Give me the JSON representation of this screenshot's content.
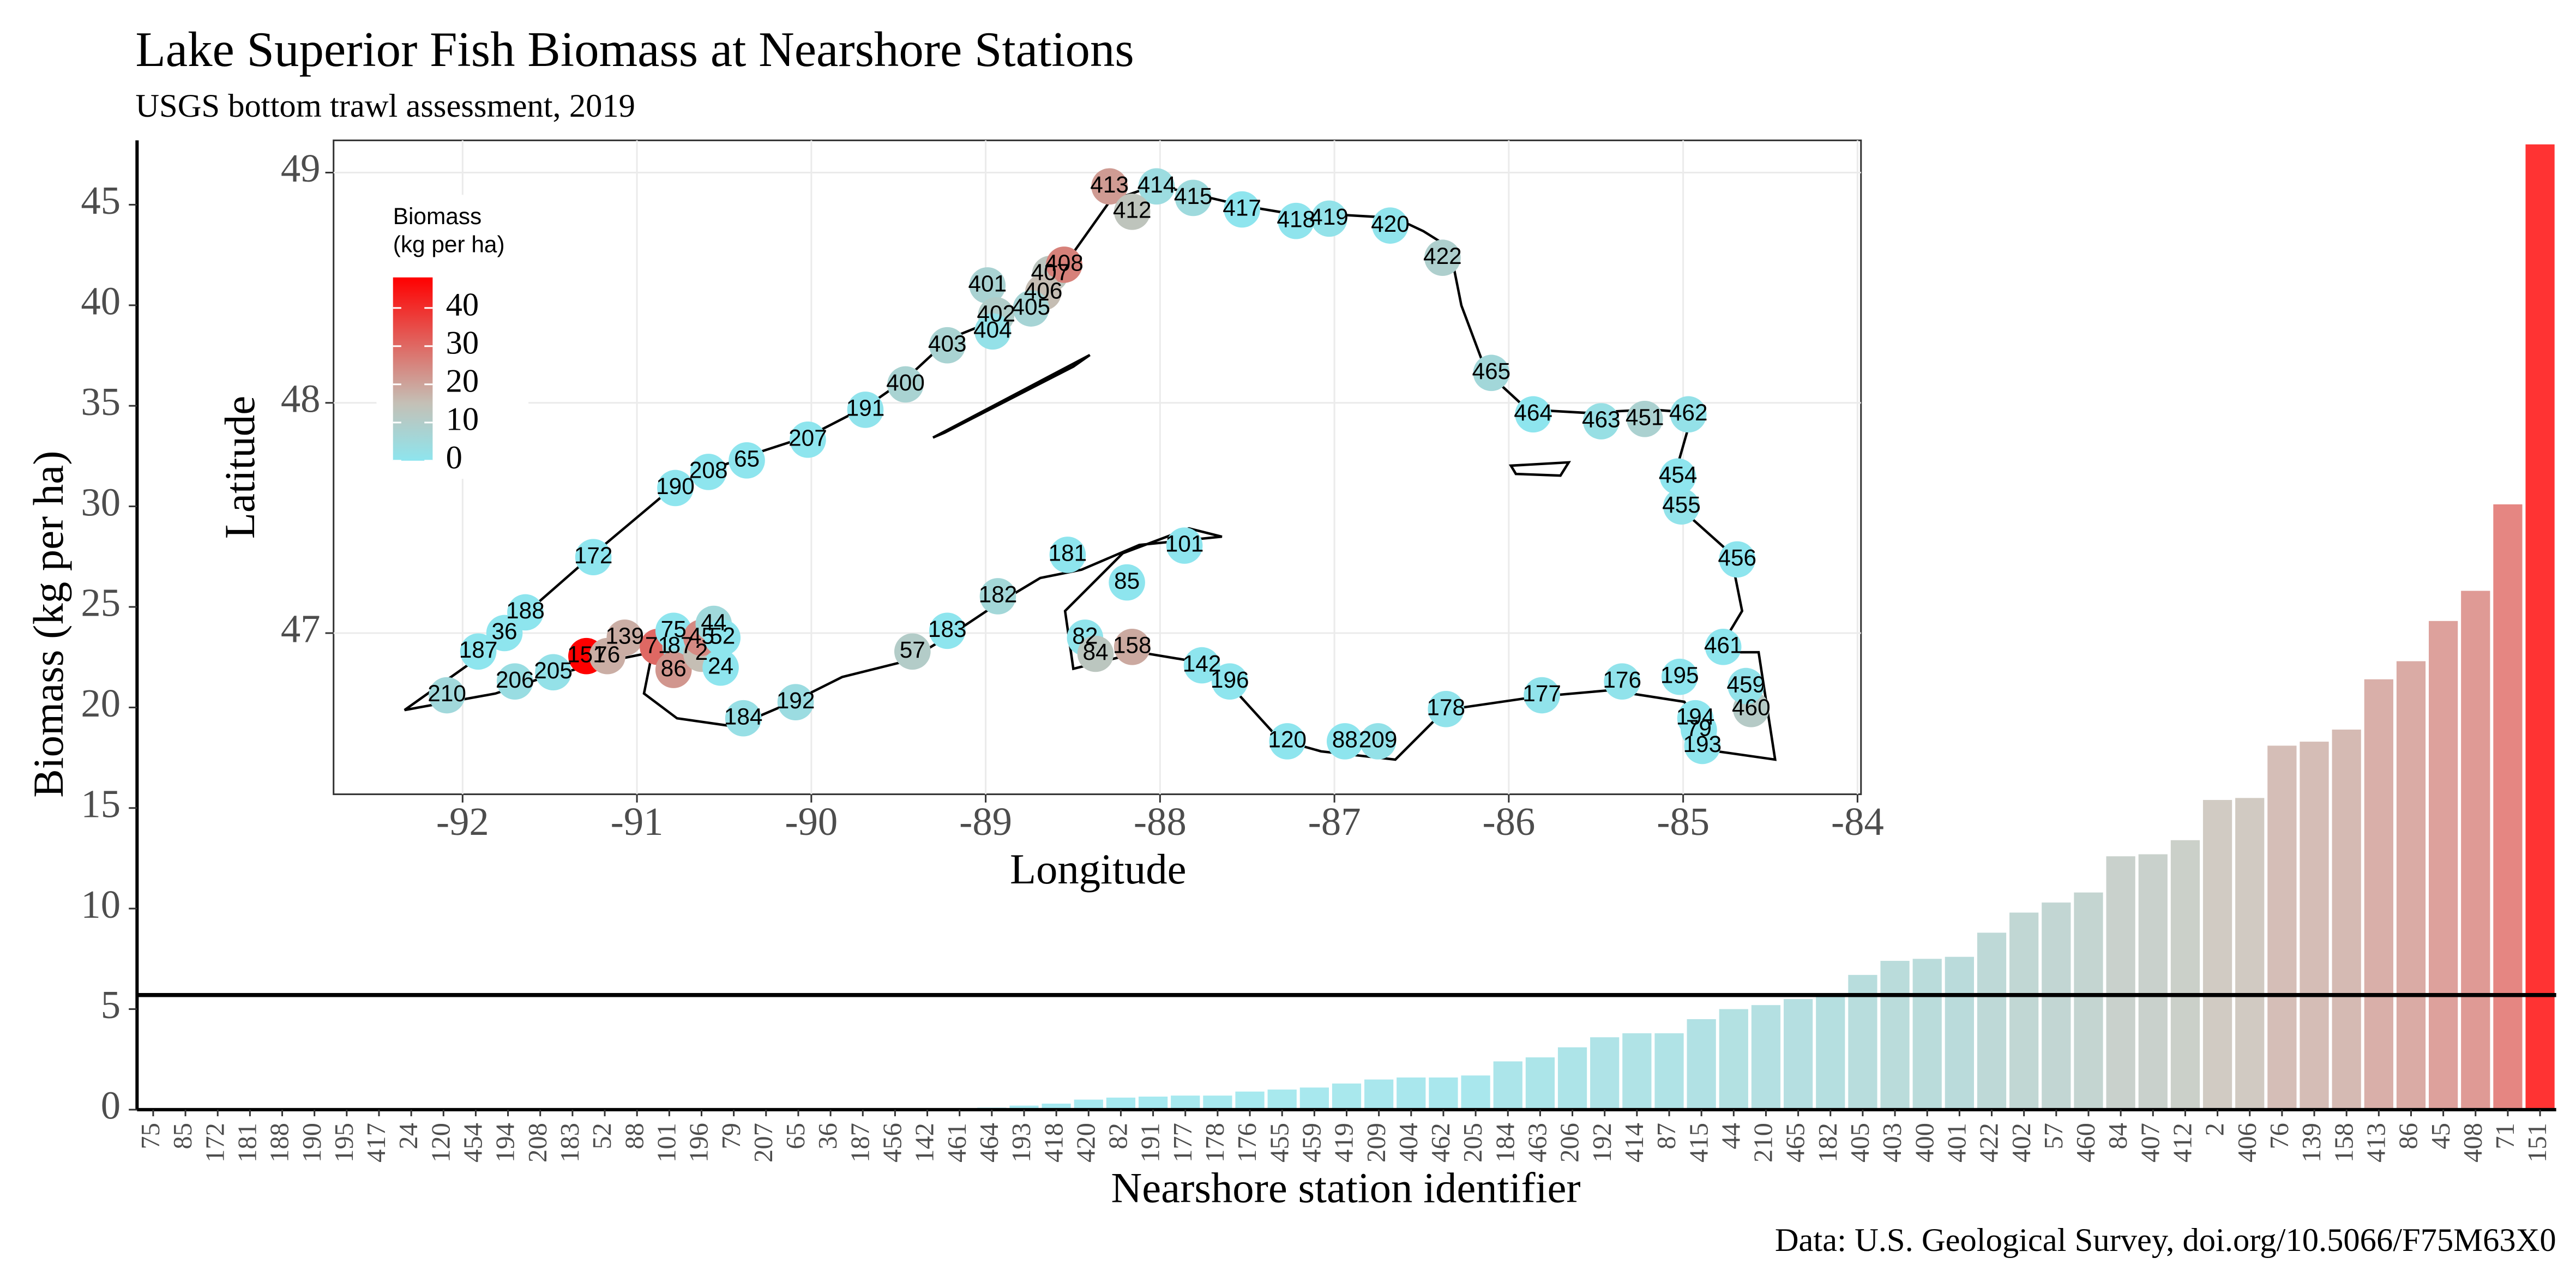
{
  "chart_data": [
    {
      "type": "bar",
      "title": "Lake Superior Fish Biomass at Nearshore Stations",
      "subtitle": "USGS bottom trawl assessment,  2019",
      "x_label": "Nearshore station identifier",
      "y_label": "Biomass (kg per ha)",
      "caption": "Data: U.S. Geological Survey, doi.org/10.5066/F75M63X0",
      "categories": [
        "75",
        "85",
        "172",
        "181",
        "188",
        "190",
        "195",
        "417",
        "24",
        "120",
        "454",
        "194",
        "208",
        "183",
        "52",
        "88",
        "101",
        "196",
        "79",
        "207",
        "65",
        "36",
        "187",
        "456",
        "142",
        "461",
        "464",
        "193",
        "418",
        "420",
        "82",
        "191",
        "177",
        "178",
        "176",
        "455",
        "459",
        "419",
        "209",
        "404",
        "462",
        "205",
        "184",
        "463",
        "206",
        "192",
        "414",
        "87",
        "415",
        "44",
        "210",
        "465",
        "182",
        "405",
        "403",
        "400",
        "401",
        "422",
        "402",
        "57",
        "460",
        "84",
        "407",
        "412",
        "2",
        "406",
        "76",
        "139",
        "158",
        "413",
        "86",
        "45",
        "408",
        "71",
        "151"
      ],
      "values": [
        0,
        0,
        0,
        0,
        0,
        0,
        0,
        0,
        0,
        0,
        0,
        0,
        0,
        0,
        0,
        0,
        0,
        0,
        0,
        0,
        0,
        0,
        0,
        0,
        0,
        0.05,
        0.1,
        0.2,
        0.3,
        0.5,
        0.6,
        0.65,
        0.7,
        0.7,
        0.9,
        1.0,
        1.1,
        1.3,
        1.5,
        1.6,
        1.6,
        1.7,
        2.4,
        2.6,
        3.1,
        3.6,
        3.8,
        3.8,
        4.5,
        5.0,
        5.2,
        5.5,
        5.8,
        6.7,
        7.4,
        7.5,
        7.6,
        8.8,
        9.8,
        10.3,
        10.8,
        12.6,
        12.7,
        13.4,
        15.4,
        15.5,
        18.1,
        18.3,
        18.9,
        21.4,
        22.3,
        24.3,
        25.8,
        30.1,
        48
      ],
      "ylim": [
        0,
        48.2
      ],
      "yticks": [
        0,
        5,
        10,
        15,
        20,
        25,
        30,
        35,
        40,
        45
      ],
      "hline": 5.7,
      "bar_opacity": 0.8,
      "color_stops": [
        {
          "value": 0,
          "color": "#8ee5ee"
        },
        {
          "value": 15,
          "color": "#c4c0b6"
        },
        {
          "value": 48,
          "color": "#ff0000"
        }
      ]
    },
    {
      "type": "scatter",
      "x_label": "Longitude",
      "y_label": "Latitude",
      "legend_title": [
        "Biomass",
        "(kg per ha)"
      ],
      "legend_ticks": [
        0,
        10,
        20,
        30,
        40
      ],
      "legend_range": [
        0,
        48
      ],
      "xlim": [
        -92.74,
        -83.98
      ],
      "ylim": [
        46.3,
        49.14
      ],
      "xticks": [
        -92,
        -91,
        -90,
        -89,
        -88,
        -87,
        -86,
        -85,
        -84
      ],
      "yticks": [
        47,
        48,
        49
      ],
      "grid": true,
      "labels": [
        "413",
        "414",
        "412",
        "415",
        "417",
        "418",
        "419",
        "420",
        "422",
        "401",
        "407",
        "408",
        "406",
        "405",
        "402",
        "404",
        "403",
        "400",
        "191",
        "207",
        "65",
        "208",
        "190",
        "172",
        "188",
        "36",
        "187",
        "210",
        "206",
        "205",
        "151",
        "76",
        "139",
        "71",
        "87",
        "86",
        "75",
        "2",
        "45",
        "44",
        "52",
        "24",
        "184",
        "192",
        "57",
        "183",
        "182",
        "181",
        "101",
        "85",
        "82",
        "84",
        "158",
        "142",
        "196",
        "120",
        "88",
        "209",
        "178",
        "177",
        "176",
        "195",
        "194",
        "79",
        "193",
        "460",
        "459",
        "461",
        "456",
        "455",
        "454",
        "462",
        "451",
        "463",
        "464",
        "465"
      ],
      "x": [
        -88.29,
        -88.02,
        -88.16,
        -87.81,
        -87.53,
        -87.22,
        -87.03,
        -86.68,
        -86.38,
        -88.99,
        -88.63,
        -88.55,
        -88.67,
        -88.74,
        -88.94,
        -88.96,
        -89.22,
        -89.46,
        -89.69,
        -90.02,
        -90.37,
        -90.59,
        -90.78,
        -91.25,
        -91.64,
        -91.76,
        -91.91,
        -92.09,
        -91.7,
        -91.48,
        -91.29,
        -91.17,
        -91.07,
        -90.88,
        -90.75,
        -90.79,
        -90.79,
        -90.63,
        -90.63,
        -90.56,
        -90.51,
        -90.52,
        -90.39,
        -90.09,
        -89.42,
        -89.22,
        -88.93,
        -88.53,
        -87.86,
        -88.19,
        -88.43,
        -88.37,
        -88.16,
        -87.76,
        -87.6,
        -87.27,
        -86.94,
        -86.75,
        -86.36,
        -85.81,
        -85.35,
        -85.02,
        -84.93,
        -84.91,
        -84.89,
        -84.61,
        -84.64,
        -84.77,
        -84.69,
        -85.01,
        -85.03,
        -84.97,
        -85.22,
        -85.47,
        -85.86,
        -86.1
      ],
      "y": [
        48.94,
        48.94,
        48.83,
        48.89,
        48.84,
        48.79,
        48.8,
        48.77,
        48.63,
        48.51,
        48.56,
        48.6,
        48.48,
        48.41,
        48.38,
        48.31,
        48.25,
        48.08,
        47.97,
        47.84,
        47.75,
        47.7,
        47.63,
        47.33,
        47.09,
        47.0,
        46.92,
        46.73,
        46.79,
        46.83,
        46.9,
        46.9,
        46.98,
        46.94,
        46.94,
        46.84,
        47.01,
        46.91,
        46.98,
        47.04,
        46.98,
        46.85,
        46.63,
        46.7,
        46.92,
        47.01,
        47.16,
        47.34,
        47.38,
        47.22,
        46.98,
        46.91,
        46.94,
        46.86,
        46.79,
        46.53,
        46.53,
        46.53,
        46.67,
        46.73,
        46.79,
        46.81,
        46.63,
        46.58,
        46.51,
        46.67,
        46.77,
        46.94,
        47.32,
        47.55,
        47.68,
        47.95,
        47.93,
        47.92,
        47.95,
        48.13
      ],
      "biomass": [
        21.4,
        3.8,
        13.4,
        4.5,
        0,
        0.3,
        1.3,
        0.5,
        8.8,
        7.6,
        12.7,
        25.8,
        15.5,
        6.7,
        9.8,
        1.6,
        7.4,
        7.5,
        0.65,
        0,
        0,
        0,
        0,
        0,
        0,
        0,
        0,
        5.2,
        3.1,
        1.7,
        48,
        18.1,
        18.3,
        30.1,
        3.8,
        22.3,
        0,
        15.4,
        24.3,
        5.0,
        0,
        0,
        2.4,
        3.6,
        10.3,
        0,
        5.8,
        0,
        0,
        0,
        0.6,
        12.6,
        18.9,
        0,
        0,
        0,
        0,
        1.5,
        0.7,
        0.7,
        0.9,
        0,
        0,
        0,
        0.2,
        10.8,
        1.1,
        0.05,
        0,
        1.0,
        0,
        1.6,
        8,
        2.6,
        0.1,
        5.5
      ]
    }
  ]
}
